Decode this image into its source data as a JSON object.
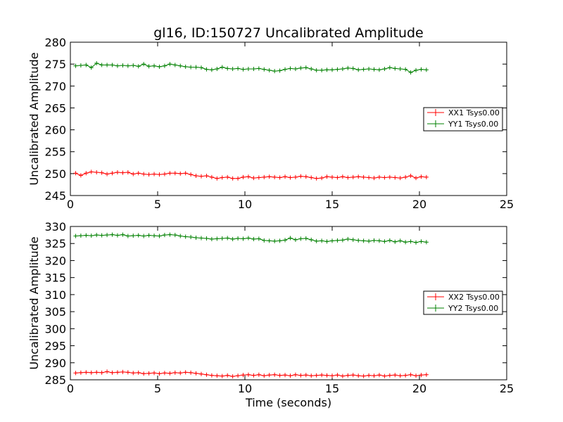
{
  "figure": {
    "title": "gl16, ID:150727 Uncalibrated Amplitude"
  },
  "colors": {
    "xx": "#ff0000",
    "yy": "#008000",
    "axes": "#000000",
    "background": "#ffffff"
  },
  "chart_data": [
    {
      "type": "line",
      "title": "gl16, ID:150727 Uncalibrated Amplitude",
      "xlabel": "",
      "ylabel": "Uncalibrated Amplitude",
      "xlim": [
        0,
        25
      ],
      "ylim": [
        245,
        280
      ],
      "xticks": [
        "0",
        "5",
        "10",
        "15",
        "20",
        "25"
      ],
      "yticks": [
        "245",
        "250",
        "255",
        "260",
        "265",
        "270",
        "275",
        "280"
      ],
      "grid": false,
      "legend_position": "right",
      "marker": "+",
      "x": [
        0.3,
        0.6,
        0.9,
        1.2,
        1.5,
        1.8,
        2.1,
        2.4,
        2.7,
        3.0,
        3.3,
        3.6,
        3.9,
        4.2,
        4.5,
        4.8,
        5.1,
        5.4,
        5.7,
        6.0,
        6.3,
        6.6,
        6.9,
        7.2,
        7.5,
        7.8,
        8.1,
        8.4,
        8.7,
        9.0,
        9.3,
        9.6,
        9.9,
        10.2,
        10.5,
        10.8,
        11.1,
        11.4,
        11.7,
        12.0,
        12.3,
        12.6,
        12.9,
        13.2,
        13.5,
        13.8,
        14.1,
        14.4,
        14.7,
        15.0,
        15.3,
        15.6,
        15.9,
        16.2,
        16.5,
        16.8,
        17.1,
        17.4,
        17.7,
        18.0,
        18.3,
        18.6,
        18.9,
        19.2,
        19.5,
        19.8,
        20.1,
        20.4
      ],
      "series": [
        {
          "name": "XX1 Tsys0.00",
          "values": [
            250.1,
            249.6,
            250.1,
            250.4,
            250.3,
            250.2,
            249.9,
            250.1,
            250.3,
            250.2,
            250.3,
            249.9,
            250.1,
            249.9,
            249.8,
            249.9,
            249.8,
            249.9,
            250.1,
            250.1,
            250.0,
            250.1,
            249.8,
            249.5,
            249.4,
            249.5,
            249.2,
            248.9,
            249.1,
            249.2,
            248.9,
            248.9,
            249.2,
            249.3,
            249.0,
            249.1,
            249.2,
            249.3,
            249.2,
            249.1,
            249.3,
            249.1,
            249.2,
            249.4,
            249.3,
            249.1,
            248.9,
            249.0,
            249.3,
            249.2,
            249.1,
            249.3,
            249.1,
            249.2,
            249.3,
            249.2,
            249.1,
            249.0,
            249.2,
            249.1,
            249.2,
            249.1,
            249.0,
            249.2,
            249.5,
            249.0,
            249.3,
            249.2
          ]
        },
        {
          "name": "YY1 Tsys0.00",
          "values": [
            274.6,
            274.7,
            274.8,
            274.2,
            275.2,
            274.8,
            274.8,
            274.8,
            274.6,
            274.7,
            274.6,
            274.7,
            274.5,
            275.0,
            274.5,
            274.6,
            274.4,
            274.6,
            275.0,
            274.8,
            274.6,
            274.4,
            274.3,
            274.3,
            274.2,
            273.8,
            273.7,
            273.9,
            274.3,
            274.0,
            273.9,
            274.0,
            273.8,
            273.9,
            273.9,
            274.0,
            273.8,
            273.6,
            273.4,
            273.5,
            273.8,
            274.0,
            273.9,
            274.1,
            274.2,
            273.9,
            273.6,
            273.6,
            273.7,
            273.7,
            273.8,
            273.9,
            274.1,
            274.0,
            273.7,
            273.8,
            273.9,
            273.8,
            273.7,
            273.9,
            274.2,
            274.0,
            273.9,
            273.8,
            273.1,
            273.6,
            273.8,
            273.7
          ]
        }
      ]
    },
    {
      "type": "line",
      "title": "",
      "xlabel": "Time (seconds)",
      "ylabel": "Uncalibrated Amplitude",
      "xlim": [
        0,
        25
      ],
      "ylim": [
        285,
        330
      ],
      "xticks": [
        "0",
        "5",
        "10",
        "15",
        "20",
        "25"
      ],
      "yticks": [
        "285",
        "290",
        "295",
        "300",
        "305",
        "310",
        "315",
        "320",
        "325",
        "330"
      ],
      "grid": false,
      "legend_position": "right",
      "marker": "+",
      "x": [
        0.3,
        0.6,
        0.9,
        1.2,
        1.5,
        1.8,
        2.1,
        2.4,
        2.7,
        3.0,
        3.3,
        3.6,
        3.9,
        4.2,
        4.5,
        4.8,
        5.1,
        5.4,
        5.7,
        6.0,
        6.3,
        6.6,
        6.9,
        7.2,
        7.5,
        7.8,
        8.1,
        8.4,
        8.7,
        9.0,
        9.3,
        9.6,
        9.9,
        10.2,
        10.5,
        10.8,
        11.1,
        11.4,
        11.7,
        12.0,
        12.3,
        12.6,
        12.9,
        13.2,
        13.5,
        13.8,
        14.1,
        14.4,
        14.7,
        15.0,
        15.3,
        15.6,
        15.9,
        16.2,
        16.5,
        16.8,
        17.1,
        17.4,
        17.7,
        18.0,
        18.3,
        18.6,
        18.9,
        19.2,
        19.5,
        19.8,
        20.1,
        20.4
      ],
      "series": [
        {
          "name": "XX2 Tsys0.00",
          "values": [
            287.0,
            287.1,
            287.2,
            287.1,
            287.2,
            287.1,
            287.4,
            287.1,
            287.2,
            287.3,
            287.2,
            287.0,
            287.1,
            286.8,
            286.9,
            287.0,
            286.8,
            287.0,
            286.9,
            287.1,
            287.0,
            287.2,
            287.1,
            286.9,
            286.7,
            286.5,
            286.3,
            286.2,
            286.1,
            286.3,
            286.0,
            286.2,
            286.4,
            286.5,
            286.3,
            286.5,
            286.2,
            286.4,
            286.5,
            286.3,
            286.4,
            286.2,
            286.5,
            286.3,
            286.4,
            286.2,
            286.3,
            286.4,
            286.3,
            286.2,
            286.4,
            286.1,
            286.3,
            286.4,
            286.2,
            286.1,
            286.3,
            286.2,
            286.4,
            286.1,
            286.3,
            286.4,
            286.2,
            286.3,
            286.5,
            286.2,
            286.4,
            286.5
          ]
        },
        {
          "name": "YY2 Tsys0.00",
          "values": [
            327.2,
            327.3,
            327.4,
            327.3,
            327.5,
            327.4,
            327.5,
            327.6,
            327.4,
            327.6,
            327.2,
            327.3,
            327.4,
            327.2,
            327.4,
            327.3,
            327.2,
            327.5,
            327.6,
            327.5,
            327.2,
            327.0,
            326.9,
            326.7,
            326.6,
            326.5,
            326.3,
            326.4,
            326.5,
            326.6,
            326.3,
            326.5,
            326.4,
            326.6,
            326.3,
            326.4,
            325.9,
            325.8,
            325.7,
            325.8,
            326.0,
            326.6,
            326.1,
            326.4,
            326.5,
            326.1,
            325.7,
            325.8,
            325.6,
            325.8,
            325.9,
            326.0,
            326.3,
            326.1,
            325.9,
            325.8,
            325.7,
            325.9,
            325.8,
            325.6,
            325.9,
            325.5,
            325.8,
            325.4,
            325.6,
            325.3,
            325.6,
            325.4
          ]
        }
      ]
    }
  ]
}
